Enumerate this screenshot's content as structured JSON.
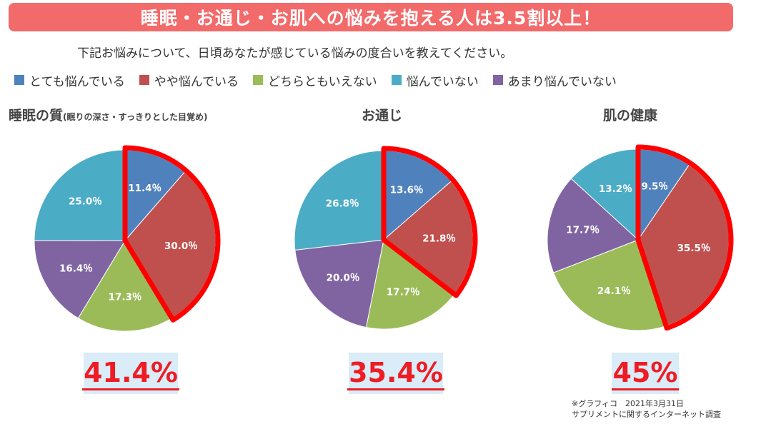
{
  "header": {
    "title": "睡眠・お通じ・お肌への悩みを抱える人は3.5割以上！",
    "question": "下記お悩みについて、日頃あなたが感じている悩みの度合いを教えてください。"
  },
  "colors": {
    "banner": "#f26a6a",
    "highlight": "#ff0000",
    "categories": [
      "#4f81bd",
      "#c0504d",
      "#9bbb59",
      "#4bacc6",
      "#8064a2"
    ]
  },
  "chart_data": [
    {
      "type": "pie",
      "title": "睡眠の質",
      "subtitle": "(眠りの深さ・すっきりとした目覚め)",
      "categories": [
        "とても悩んでいる",
        "やや悩んでいる",
        "どちらともいえない",
        "悩んでいない",
        "あまり悩んでいない"
      ],
      "order": [
        0,
        1,
        2,
        4,
        3
      ],
      "values": [
        11.4,
        30.0,
        17.3,
        25.0,
        16.4
      ],
      "labels": [
        "11.4％",
        "30.0％",
        "17.3％",
        "25.0％",
        "16.4％"
      ],
      "highlight": [
        0,
        1
      ],
      "total": "41.4%"
    },
    {
      "type": "pie",
      "title": "お通じ",
      "subtitle": "",
      "categories": [
        "とても悩んでいる",
        "やや悩んでいる",
        "どちらともいえない",
        "悩んでいない",
        "あまり悩んでいない"
      ],
      "order": [
        0,
        1,
        2,
        4,
        3
      ],
      "values": [
        13.6,
        21.8,
        17.7,
        26.8,
        20.0
      ],
      "labels": [
        "13.6％",
        "21.8％",
        "17.7％",
        "26.8％",
        "20.0％"
      ],
      "highlight": [
        0,
        1
      ],
      "total": "35.4%"
    },
    {
      "type": "pie",
      "title": "肌の健康",
      "subtitle": "",
      "categories": [
        "とても悩んでいる",
        "やや悩んでいる",
        "どちらともいえない",
        "悩んでいない",
        "あまり悩んでいない"
      ],
      "order": [
        0,
        1,
        2,
        4,
        3
      ],
      "values": [
        9.5,
        35.5,
        24.1,
        13.2,
        17.7
      ],
      "labels": [
        "9.5％",
        "35.5％",
        "24.1％",
        "13.2％",
        "17.7％"
      ],
      "highlight": [
        0,
        1
      ],
      "total": "45%"
    }
  ],
  "legend": [
    {
      "label": "とても悩んでいる",
      "color": "#4f81bd"
    },
    {
      "label": "やや悩んでいる",
      "color": "#c0504d"
    },
    {
      "label": "どちらともいえない",
      "color": "#9bbb59"
    },
    {
      "label": "悩んでいない",
      "color": "#4bacc6"
    },
    {
      "label": "あまり悩んでいない",
      "color": "#8064a2"
    }
  ],
  "note": {
    "line1": "※グラフィコ　2021年3月31日",
    "line2": "サプリメントに関するインターネット調査"
  }
}
